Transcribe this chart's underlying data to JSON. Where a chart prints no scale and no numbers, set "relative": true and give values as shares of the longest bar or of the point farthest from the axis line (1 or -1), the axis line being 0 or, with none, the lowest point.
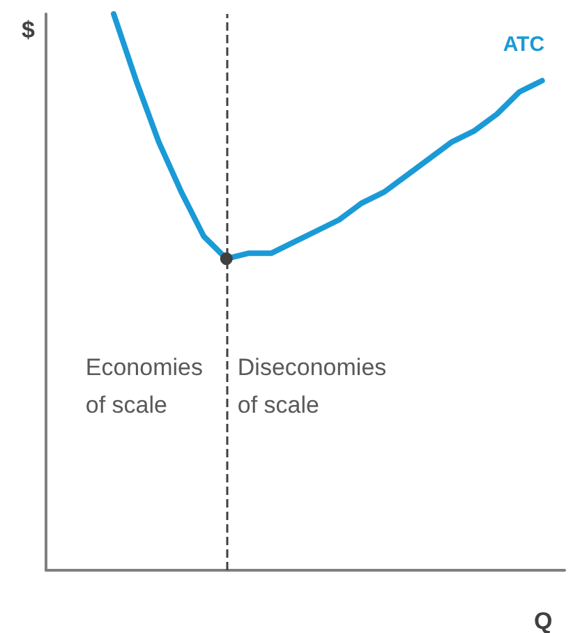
{
  "chart_data": {
    "type": "line",
    "relative": true,
    "xlabel": "Q",
    "ylabel": "$",
    "categories": [
      null,
      null,
      null,
      null,
      null,
      null,
      null,
      null,
      null,
      null,
      null,
      null,
      null,
      null,
      null,
      null,
      null,
      null,
      null,
      null,
      null,
      null,
      null,
      null
    ],
    "series": [
      {
        "name": "ATC",
        "color": "#1a9ad6",
        "values": [
          null,
          null,
          null,
          1.0,
          0.88,
          0.77,
          0.68,
          0.6,
          0.56,
          0.57,
          0.57,
          0.59,
          0.61,
          0.63,
          0.66,
          0.68,
          0.71,
          0.74,
          0.77,
          0.79,
          0.82,
          0.86,
          0.88,
          null
        ]
      }
    ],
    "annotations": [
      "Economies of scale",
      "Diseconomies of scale"
    ]
  }
}
